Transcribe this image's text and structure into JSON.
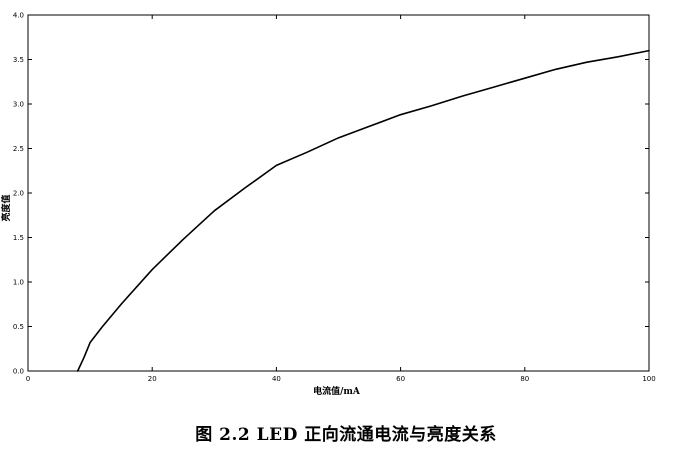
{
  "caption": "图 2.2 LED 正向流通电流与亮度关系",
  "chart_data": {
    "type": "line",
    "title": "",
    "xlabel": "电流值/mA",
    "ylabel": "亮度值",
    "xlim": [
      0,
      100
    ],
    "ylim": [
      0,
      4.0
    ],
    "xticks": [
      0,
      20,
      40,
      60,
      80,
      100
    ],
    "yticks": [
      0.0,
      0.5,
      1.0,
      1.5,
      2.0,
      2.5,
      3.0,
      3.5,
      4.0
    ],
    "xtick_labels": [
      "0",
      "20",
      "40",
      "60",
      "80",
      "100"
    ],
    "ytick_labels": [
      "0.0",
      "0.5",
      "1.0",
      "1.5",
      "2.0",
      "2.5",
      "3.0",
      "3.5",
      "4.0"
    ],
    "grid": false,
    "legend": false,
    "series": [
      {
        "color": "#000000",
        "x": [
          8,
          9,
          10,
          12,
          15,
          20,
          25,
          30,
          35,
          40,
          45,
          50,
          55,
          60,
          65,
          70,
          75,
          80,
          85,
          90,
          95,
          100
        ],
        "y": [
          0.0,
          0.15,
          0.32,
          0.5,
          0.75,
          1.14,
          1.48,
          1.8,
          2.06,
          2.31,
          2.46,
          2.62,
          2.75,
          2.88,
          2.98,
          3.09,
          3.19,
          3.29,
          3.39,
          3.47,
          3.53,
          3.6
        ]
      }
    ]
  }
}
